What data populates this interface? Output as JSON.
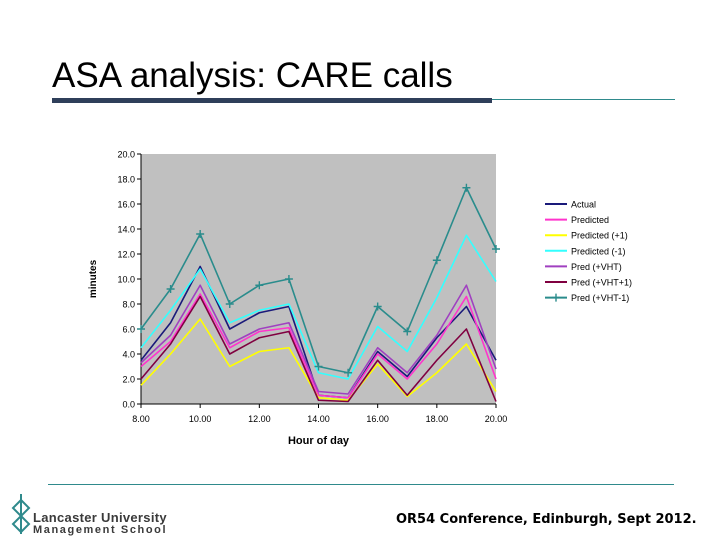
{
  "slide": {
    "title": "ASA analysis: CARE calls",
    "footer": "OR54 Conference, Edinburgh, Sept 2012.",
    "logo_line1": "Lancaster University",
    "logo_line2": "Management School"
  },
  "colors": {
    "plot_bg": "#c0c0c0",
    "title_rule": "#2f3f5a",
    "accent_rule": "#2f8a8c",
    "logo": "#2f8a8c"
  },
  "chart_data": {
    "type": "line",
    "xlabel": "Hour of day",
    "ylabel": "minutes",
    "xlim": [
      8,
      20
    ],
    "ylim": [
      0,
      20
    ],
    "xticks": [
      8,
      10,
      12,
      14,
      16,
      18,
      20
    ],
    "xtick_labels": [
      "8.00",
      "10.00",
      "12.00",
      "14.00",
      "16.00",
      "18.00",
      "20.00"
    ],
    "yticks": [
      0,
      2,
      4,
      6,
      8,
      10,
      12,
      14,
      16,
      18,
      20
    ],
    "ytick_labels": [
      "0.0",
      "2.0",
      "4.0",
      "6.0",
      "8.0",
      "10.0",
      "12.0",
      "14.0",
      "16.0",
      "18.0",
      "20.0"
    ],
    "grid": false,
    "legend_position": "right",
    "x": [
      8,
      9,
      10,
      11,
      12,
      13,
      14,
      15,
      16,
      17,
      18,
      19,
      20
    ],
    "series": [
      {
        "name": "Actual",
        "color": "#1a1a7a",
        "marker": false,
        "values": [
          3.5,
          6.5,
          11.0,
          6.0,
          7.3,
          7.8,
          0.7,
          0.5,
          4.2,
          2.2,
          5.3,
          7.8,
          3.5
        ]
      },
      {
        "name": "Predicted",
        "color": "#ff33cc",
        "marker": false,
        "values": [
          3.0,
          5.0,
          8.8,
          4.5,
          5.8,
          6.1,
          0.7,
          0.5,
          4.0,
          2.0,
          4.8,
          8.6,
          2.0
        ]
      },
      {
        "name": "Predicted (+1)",
        "color": "#ffff00",
        "marker": false,
        "values": [
          1.5,
          4.0,
          6.8,
          3.0,
          4.2,
          4.5,
          0.5,
          0.3,
          3.2,
          0.6,
          2.5,
          4.8,
          1.0
        ]
      },
      {
        "name": "Predicted (-1)",
        "color": "#33ffff",
        "marker": false,
        "values": [
          4.5,
          7.5,
          10.8,
          6.5,
          7.5,
          8.0,
          2.5,
          2.0,
          6.2,
          4.2,
          8.5,
          13.5,
          9.8
        ]
      },
      {
        "name": "Pred (+VHT)",
        "color": "#a040c0",
        "marker": false,
        "values": [
          3.3,
          5.5,
          9.5,
          4.8,
          6.0,
          6.5,
          1.0,
          0.8,
          4.5,
          2.5,
          5.5,
          9.5,
          2.8
        ]
      },
      {
        "name": "Pred (+VHT+1)",
        "color": "#800040",
        "marker": false,
        "values": [
          2.0,
          4.8,
          8.6,
          4.0,
          5.3,
          5.8,
          0.3,
          0.2,
          3.5,
          0.7,
          3.5,
          6.0,
          0.2
        ]
      },
      {
        "name": "Pred (+VHT-1)",
        "color": "#2a8c8c",
        "marker": true,
        "values": [
          6.0,
          9.2,
          13.6,
          8.0,
          9.5,
          10.0,
          3.0,
          2.5,
          7.8,
          5.8,
          11.5,
          17.3,
          12.4
        ]
      }
    ]
  }
}
